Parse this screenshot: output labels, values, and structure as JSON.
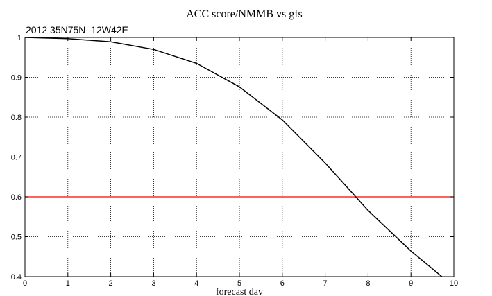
{
  "chart_data": {
    "type": "line",
    "title": "ACC score/NMMB vs gfs",
    "subtitle": "2012 35N75N_12W42E",
    "xlabel": "forecast dav",
    "ylabel": "",
    "xlim": [
      0,
      10
    ],
    "ylim": [
      0.4,
      1.0
    ],
    "xticks": [
      "0",
      "1",
      "2",
      "3",
      "4",
      "5",
      "6",
      "7",
      "8",
      "9",
      "10"
    ],
    "yticks": [
      "0.4",
      "0.5",
      "0.6",
      "0.7",
      "0.8",
      "0.9",
      "1"
    ],
    "grid": true,
    "series": [
      {
        "color": "#000000",
        "x": [
          0,
          1,
          2,
          3,
          4,
          5,
          6,
          7,
          8,
          9,
          9.72
        ],
        "y": [
          1.0,
          0.997,
          0.989,
          0.97,
          0.935,
          0.876,
          0.793,
          0.685,
          0.566,
          0.464,
          0.4
        ]
      }
    ],
    "reference_line": {
      "y": 0.6,
      "color": "#ff0000"
    }
  }
}
